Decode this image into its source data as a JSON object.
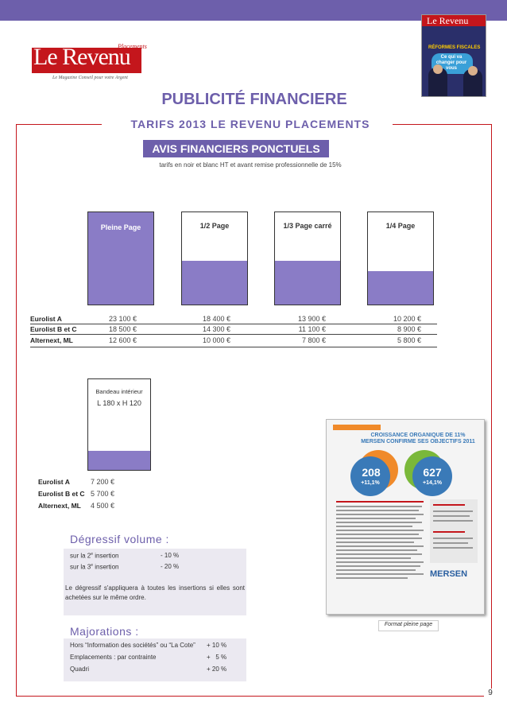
{
  "logo": {
    "text": "Le Revenu",
    "placements": "Placements",
    "tagline": "Le Magazine Conseil pour votre Argent"
  },
  "cover": {
    "title": "Le Revenu",
    "headline": "RÉFORMES FISCALES",
    "sub": "Ce qui va changer pour vous"
  },
  "header": {
    "title": "PUBLICITÉ FINANCIERE",
    "subtitle": "TARIFS  2013  LE  REVENU  PLACEMENTS"
  },
  "banner": {
    "title": "AVIS FINANCIERS PONCTUELS",
    "note": "tarifs en noir et blanc HT et avant remise professionnelle de 15%"
  },
  "formats": [
    {
      "label": "Pleine Page",
      "fill": 1.0
    },
    {
      "label": "1/2 Page",
      "fill": 0.47
    },
    {
      "label": "1/3 Page carré",
      "fill": 0.47
    },
    {
      "label": "1/4 Page",
      "fill": 0.36
    }
  ],
  "markets": [
    "Eurolist A",
    "Eurolist B et C",
    "Alternext, ML"
  ],
  "prices": [
    [
      "23 100 €",
      "18 500 €",
      "12 600 €"
    ],
    [
      "18 400 €",
      "14 300 €",
      "10 000 €"
    ],
    [
      "13 900 €",
      "11 100 €",
      "7 800 €"
    ],
    [
      "10 200 €",
      "8 900 €",
      "5 800 €"
    ]
  ],
  "bandeau": {
    "label": "Bandeau intérieur",
    "size": "L 180 x H 120",
    "markets": [
      "Eurolist A",
      "Eurolist B et C",
      "Alternext, ML"
    ],
    "prices": [
      "7 200 €",
      "5 700 €",
      "4 500 €"
    ]
  },
  "degressif": {
    "title": "Dégressif volume :",
    "line1_a": "sur la 2",
    "line1_sup": "e",
    "line1_b": " insertion",
    "line1_value": "- 10 %",
    "line2_a": "sur la 3",
    "line2_sup": "e",
    "line2_b": " insertion",
    "line2_value": "- 20 %",
    "note": "Le dégressif s'appliquera à toutes les insertions si elles sont achetées sur le même ordre."
  },
  "majorations": {
    "title": "Majorations :",
    "items": [
      {
        "label": "Hors “Information des sociétés” ou “La Cote”",
        "value": "+ 10 %"
      },
      {
        "label": "Emplacements : par contrainte",
        "value": "+   5 %"
      },
      {
        "label": "Quadri",
        "value": "+ 20 %"
      }
    ]
  },
  "ad_sample": {
    "headline": "CROISSANCE ORGANIQUE DE 11% MERSEN CONFIRME SES OBJECTIFS 2011",
    "fig1": "208",
    "pct1": "+11,1%",
    "fig2": "627",
    "pct2": "+14,1%",
    "brand": "MERSEN",
    "caption": "Format pleine page"
  },
  "page_number": "9",
  "colors": {
    "purple": "#6d5fab",
    "fill": "#8a7cc6",
    "red": "#c4161c"
  }
}
